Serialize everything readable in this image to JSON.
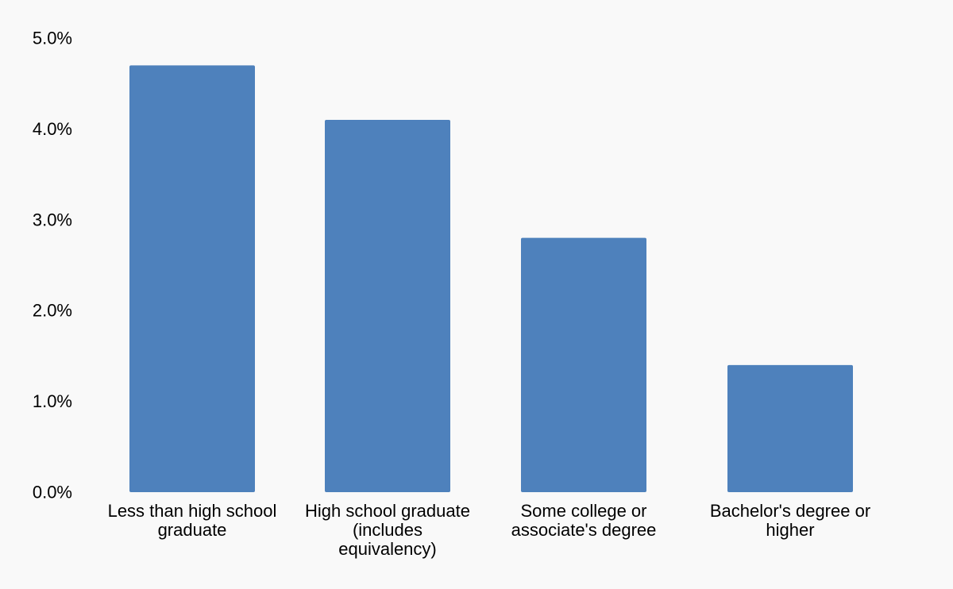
{
  "chart_data": {
    "type": "bar",
    "title": "",
    "xlabel": "",
    "ylabel": "",
    "categories": [
      [
        "Less than high school",
        "graduate"
      ],
      [
        "High school graduate",
        "(includes",
        "equivalency)"
      ],
      [
        "Some college or",
        "associate's degree"
      ],
      [
        "Bachelor's degree or",
        "higher"
      ]
    ],
    "values": [
      4.7,
      4.1,
      2.8,
      1.4
    ],
    "ylim": [
      0,
      5
    ],
    "yticks": [
      "0.0%",
      "1.0%",
      "2.0%",
      "3.0%",
      "4.0%",
      "5.0%"
    ],
    "grid": false,
    "legend": "none",
    "bar_color": "#4e81bc",
    "text_color": "#000000",
    "background": "#f9f9f9"
  }
}
